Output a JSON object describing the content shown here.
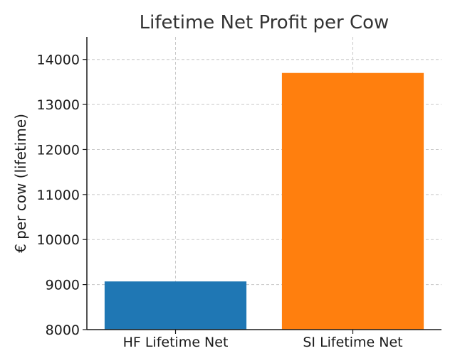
{
  "chart_data": {
    "type": "bar",
    "title": "Lifetime Net Profit per Cow",
    "xlabel": "",
    "ylabel": "€ per cow (lifetime)",
    "categories": [
      "HF Lifetime Net",
      "SI Lifetime Net"
    ],
    "values": [
      9070,
      13700
    ],
    "colors": [
      "#1f77b4",
      "#ff7f0e"
    ],
    "ylim": [
      8000,
      14500
    ],
    "yticks": [
      8000,
      9000,
      10000,
      11000,
      12000,
      13000,
      14000
    ],
    "grid": true
  }
}
